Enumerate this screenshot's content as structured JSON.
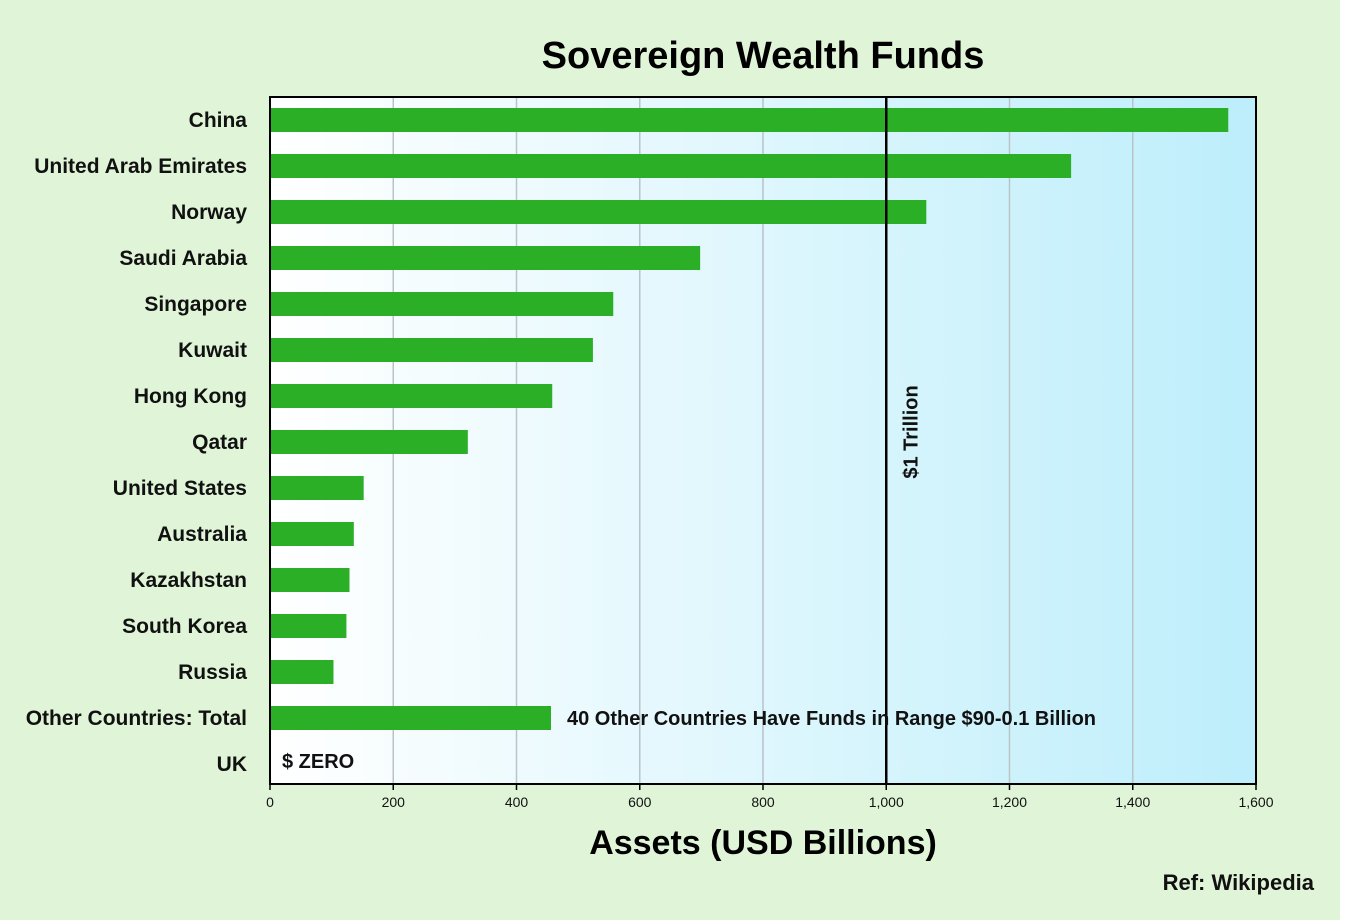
{
  "chart_data": {
    "type": "bar",
    "orientation": "horizontal",
    "title": "Sovereign Wealth Funds",
    "xlabel": "Assets (USD Billions)",
    "ylabel": "",
    "xlim": [
      0,
      1600
    ],
    "xticks": [
      0,
      200,
      400,
      600,
      800,
      1000,
      1200,
      1400,
      1600
    ],
    "xtick_labels": [
      "0",
      "200",
      "400",
      "600",
      "800",
      "1,000",
      "1,200",
      "1,400",
      "1,600"
    ],
    "grid": "vertical",
    "categories": [
      "China",
      "United Arab Emirates",
      "Norway",
      "Saudi Arabia",
      "Singapore",
      "Kuwait",
      "Hong Kong",
      "Qatar",
      "United States",
      "Australia",
      "Kazakhstan",
      "South Korea",
      "Russia",
      "Other Countries: Total",
      "UK"
    ],
    "values": [
      1555,
      1300,
      1065,
      698,
      557,
      524,
      458,
      321,
      152,
      136,
      129,
      124,
      103,
      456,
      0
    ],
    "bar_color": "#2aaf26",
    "reference_line": {
      "value": 1000,
      "label": "$1 Trillion"
    },
    "annotations": {
      "other_countries": "40 Other Countries Have Funds in Range $90-0.1 Billion",
      "uk": "$ ZERO"
    },
    "source": "Ref: Wikipedia"
  }
}
